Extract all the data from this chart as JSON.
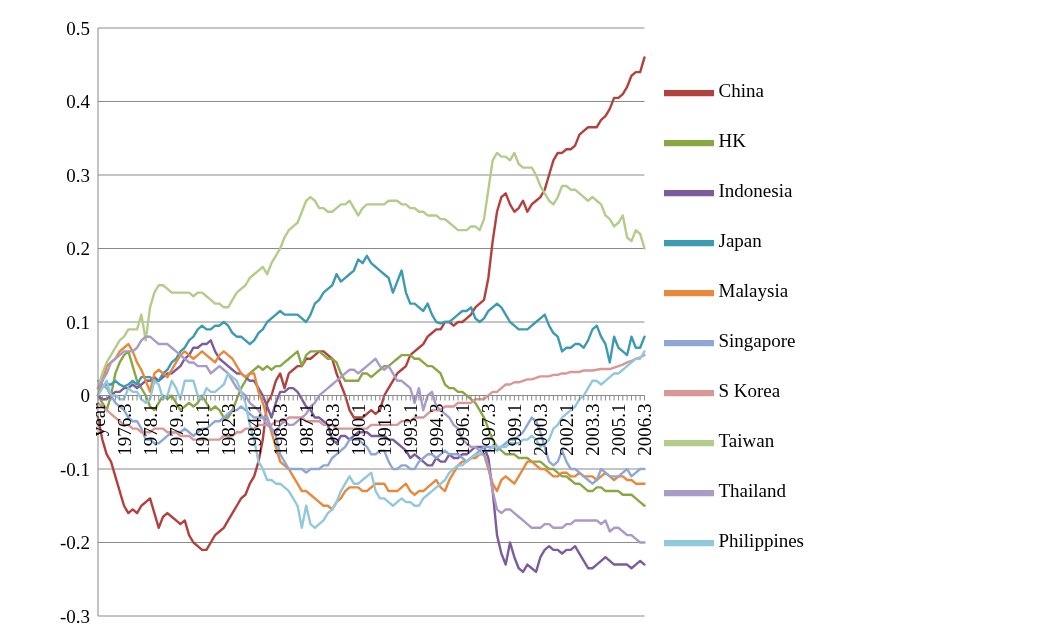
{
  "chart_data": {
    "type": "line",
    "categories": [
      "year",
      null,
      null,
      null,
      null,
      null,
      "1976.3",
      null,
      null,
      null,
      null,
      null,
      "1978.1",
      null,
      null,
      null,
      null,
      null,
      "1979.3",
      null,
      null,
      null,
      null,
      null,
      "1981.1",
      null,
      null,
      null,
      null,
      null,
      "1982.3",
      null,
      null,
      null,
      null,
      null,
      "1984.1",
      null,
      null,
      null,
      null,
      null,
      "1985.3",
      null,
      null,
      null,
      null,
      null,
      "1987.1",
      null,
      null,
      null,
      null,
      null,
      "1988.3",
      null,
      null,
      null,
      null,
      null,
      "1990.1",
      null,
      null,
      null,
      null,
      null,
      "1991.3",
      null,
      null,
      null,
      null,
      null,
      "1993.1",
      null,
      null,
      null,
      null,
      null,
      "1994.3",
      null,
      null,
      null,
      null,
      null,
      "1996.1",
      null,
      null,
      null,
      null,
      null,
      "1997.3",
      null,
      null,
      null,
      null,
      null,
      "1999.1",
      null,
      null,
      null,
      null,
      null,
      "2000.3",
      null,
      null,
      null,
      null,
      null,
      "2002.1",
      null,
      null,
      null,
      null,
      null,
      "2003.3",
      null,
      null,
      null,
      null,
      null,
      "2005.1",
      null,
      null,
      null,
      null,
      null,
      "2006.3"
    ],
    "ylim": [
      -0.3,
      0.5
    ],
    "yticks": [
      -0.3,
      -0.2,
      -0.1,
      0,
      0.1,
      0.2,
      0.3,
      0.4,
      0.5
    ],
    "grid": "y",
    "legend": "right",
    "series": [
      {
        "name": "China",
        "color": "#b2413e",
        "values": [
          -0.03,
          -0.06,
          -0.08,
          -0.09,
          -0.11,
          -0.13,
          -0.15,
          -0.16,
          -0.155,
          -0.16,
          -0.15,
          -0.145,
          -0.14,
          -0.16,
          -0.18,
          -0.165,
          -0.16,
          -0.165,
          -0.17,
          -0.175,
          -0.17,
          -0.19,
          -0.2,
          -0.205,
          -0.21,
          -0.21,
          -0.2,
          -0.19,
          -0.185,
          -0.18,
          -0.17,
          -0.16,
          -0.15,
          -0.14,
          -0.135,
          -0.12,
          -0.11,
          -0.09,
          -0.06,
          -0.01,
          0.0,
          0.02,
          0.03,
          0.01,
          0.03,
          0.035,
          0.04,
          0.04,
          0.05,
          0.05,
          0.055,
          0.06,
          0.06,
          0.055,
          0.05,
          0.03,
          0.015,
          0.0,
          -0.02,
          -0.03,
          -0.03,
          -0.03,
          -0.025,
          -0.02,
          -0.025,
          -0.02,
          0.0,
          0.01,
          0.02,
          0.03,
          0.035,
          0.04,
          0.055,
          0.06,
          0.065,
          0.07,
          0.08,
          0.085,
          0.09,
          0.09,
          0.1,
          0.1,
          0.095,
          0.1,
          0.1,
          0.105,
          0.11,
          0.12,
          0.125,
          0.13,
          0.16,
          0.21,
          0.25,
          0.27,
          0.275,
          0.26,
          0.25,
          0.255,
          0.265,
          0.25,
          0.26,
          0.265,
          0.27,
          0.28,
          0.3,
          0.32,
          0.33,
          0.33,
          0.335,
          0.335,
          0.34,
          0.355,
          0.36,
          0.365,
          0.365,
          0.365,
          0.375,
          0.38,
          0.39,
          0.405,
          0.405,
          0.41,
          0.42,
          0.435,
          0.44,
          0.44,
          0.46
        ]
      },
      {
        "name": "HK",
        "color": "#8aa745",
        "values": [
          0.0,
          -0.01,
          -0.02,
          0.0,
          0.03,
          0.045,
          0.055,
          0.06,
          0.04,
          0.02,
          0.01,
          0.0,
          -0.015,
          -0.02,
          -0.01,
          0.0,
          -0.005,
          0.0,
          -0.01,
          -0.02,
          -0.015,
          -0.01,
          -0.015,
          -0.01,
          0.0,
          -0.01,
          -0.02,
          -0.015,
          -0.02,
          -0.03,
          -0.03,
          -0.02,
          -0.005,
          0.01,
          0.02,
          0.03,
          0.035,
          0.04,
          0.035,
          0.04,
          0.035,
          0.04,
          0.04,
          0.045,
          0.05,
          0.055,
          0.06,
          0.04,
          0.055,
          0.06,
          0.06,
          0.06,
          0.055,
          0.05,
          0.05,
          0.045,
          0.03,
          0.02,
          0.02,
          0.02,
          0.02,
          0.03,
          0.03,
          0.025,
          0.03,
          0.035,
          0.04,
          0.04,
          0.045,
          0.05,
          0.055,
          0.055,
          0.055,
          0.05,
          0.05,
          0.045,
          0.04,
          0.04,
          0.035,
          0.03,
          0.015,
          0.01,
          0.01,
          0.005,
          0.005,
          0.0,
          -0.005,
          -0.01,
          -0.02,
          -0.03,
          -0.045,
          -0.06,
          -0.07,
          -0.075,
          -0.08,
          -0.08,
          -0.08,
          -0.085,
          -0.085,
          -0.085,
          -0.09,
          -0.09,
          -0.09,
          -0.095,
          -0.1,
          -0.1,
          -0.105,
          -0.11,
          -0.11,
          -0.115,
          -0.12,
          -0.12,
          -0.125,
          -0.13,
          -0.13,
          -0.125,
          -0.125,
          -0.13,
          -0.13,
          -0.13,
          -0.13,
          -0.135,
          -0.135,
          -0.135,
          -0.14,
          -0.145,
          -0.15
        ]
      },
      {
        "name": "Indonesia",
        "color": "#7b5c9c",
        "values": [
          0.0,
          -0.005,
          -0.005,
          0.0,
          0.005,
          0.005,
          0.01,
          0.01,
          0.015,
          0.01,
          0.015,
          0.02,
          0.02,
          0.025,
          0.02,
          0.025,
          0.03,
          0.03,
          0.035,
          0.04,
          0.05,
          0.055,
          0.065,
          0.065,
          0.07,
          0.07,
          0.075,
          0.06,
          0.05,
          0.045,
          0.04,
          0.035,
          0.03,
          0.03,
          0.025,
          0.02,
          0.02,
          0.01,
          0.0,
          -0.015,
          -0.03,
          -0.01,
          0.005,
          0.005,
          0.01,
          0.01,
          0.005,
          -0.005,
          -0.015,
          -0.02,
          -0.03,
          -0.03,
          -0.035,
          -0.04,
          -0.06,
          -0.065,
          -0.055,
          -0.055,
          -0.06,
          -0.055,
          -0.05,
          -0.05,
          -0.05,
          -0.055,
          -0.055,
          -0.055,
          -0.055,
          -0.06,
          -0.06,
          -0.065,
          -0.07,
          -0.075,
          -0.085,
          -0.08,
          -0.085,
          -0.09,
          -0.095,
          -0.095,
          -0.085,
          -0.09,
          -0.09,
          -0.08,
          -0.085,
          -0.085,
          -0.08,
          -0.08,
          -0.075,
          -0.07,
          -0.07,
          -0.07,
          -0.085,
          -0.13,
          -0.19,
          -0.215,
          -0.23,
          -0.2,
          -0.22,
          -0.235,
          -0.24,
          -0.23,
          -0.235,
          -0.24,
          -0.22,
          -0.21,
          -0.205,
          -0.21,
          -0.21,
          -0.215,
          -0.21,
          -0.21,
          -0.205,
          -0.215,
          -0.225,
          -0.235,
          -0.235,
          -0.23,
          -0.225,
          -0.22,
          -0.225,
          -0.23,
          -0.23,
          -0.23,
          -0.23,
          -0.235,
          -0.23,
          -0.225,
          -0.23
        ]
      },
      {
        "name": "Japan",
        "color": "#3c9bb0",
        "values": [
          0.01,
          0.012,
          0.015,
          0.015,
          0.02,
          0.015,
          0.012,
          0.015,
          0.02,
          0.015,
          0.025,
          0.025,
          0.025,
          0.02,
          0.02,
          0.03,
          0.035,
          0.045,
          0.05,
          0.06,
          0.065,
          0.075,
          0.08,
          0.09,
          0.095,
          0.09,
          0.09,
          0.095,
          0.095,
          0.1,
          0.095,
          0.085,
          0.08,
          0.08,
          0.075,
          0.07,
          0.075,
          0.085,
          0.09,
          0.1,
          0.105,
          0.11,
          0.115,
          0.11,
          0.11,
          0.11,
          0.11,
          0.105,
          0.1,
          0.11,
          0.125,
          0.13,
          0.14,
          0.145,
          0.15,
          0.165,
          0.155,
          0.16,
          0.165,
          0.17,
          0.185,
          0.18,
          0.19,
          0.18,
          0.175,
          0.17,
          0.165,
          0.16,
          0.14,
          0.155,
          0.17,
          0.14,
          0.125,
          0.125,
          0.12,
          0.115,
          0.125,
          0.11,
          0.1,
          0.098,
          0.1,
          0.1,
          0.105,
          0.11,
          0.115,
          0.115,
          0.12,
          0.105,
          0.1,
          0.105,
          0.115,
          0.12,
          0.125,
          0.12,
          0.11,
          0.1,
          0.095,
          0.09,
          0.09,
          0.09,
          0.095,
          0.1,
          0.105,
          0.11,
          0.095,
          0.085,
          0.08,
          0.06,
          0.065,
          0.065,
          0.07,
          0.07,
          0.065,
          0.075,
          0.09,
          0.095,
          0.08,
          0.07,
          0.045,
          0.08,
          0.065,
          0.06,
          0.055,
          0.08,
          0.065,
          0.065,
          0.08
        ]
      },
      {
        "name": "Malaysia",
        "color": "#e8883a",
        "values": [
          0.0,
          0.02,
          0.04,
          0.045,
          0.05,
          0.06,
          0.065,
          0.07,
          0.06,
          0.045,
          0.035,
          0.02,
          0.005,
          0.03,
          0.035,
          0.03,
          0.025,
          0.035,
          0.045,
          0.055,
          0.06,
          0.055,
          0.05,
          0.055,
          0.06,
          0.055,
          0.05,
          0.045,
          0.055,
          0.06,
          0.055,
          0.05,
          0.04,
          0.03,
          0.025,
          0.03,
          0.03,
          0.005,
          -0.01,
          -0.03,
          -0.05,
          -0.07,
          -0.09,
          -0.095,
          -0.1,
          -0.11,
          -0.12,
          -0.13,
          -0.13,
          -0.135,
          -0.14,
          -0.145,
          -0.15,
          -0.15,
          -0.155,
          -0.145,
          -0.14,
          -0.13,
          -0.125,
          -0.125,
          -0.125,
          -0.13,
          -0.13,
          -0.125,
          -0.12,
          -0.12,
          -0.12,
          -0.13,
          -0.13,
          -0.13,
          -0.125,
          -0.12,
          -0.13,
          -0.135,
          -0.13,
          -0.13,
          -0.125,
          -0.12,
          -0.115,
          -0.125,
          -0.13,
          -0.115,
          -0.105,
          -0.095,
          -0.09,
          -0.09,
          -0.085,
          -0.085,
          -0.08,
          -0.08,
          -0.1,
          -0.12,
          -0.13,
          -0.115,
          -0.11,
          -0.115,
          -0.12,
          -0.11,
          -0.1,
          -0.09,
          -0.09,
          -0.095,
          -0.1,
          -0.1,
          -0.105,
          -0.11,
          -0.11,
          -0.105,
          -0.105,
          -0.11,
          -0.11,
          -0.105,
          -0.11,
          -0.11,
          -0.11,
          -0.115,
          -0.11,
          -0.105,
          -0.11,
          -0.115,
          -0.11,
          -0.11,
          -0.115,
          -0.115,
          -0.12,
          -0.12,
          -0.12
        ]
      },
      {
        "name": "Singapore",
        "color": "#8ea7d6",
        "values": [
          0.02,
          0.015,
          0.01,
          0.0,
          -0.01,
          -0.015,
          -0.02,
          -0.03,
          -0.035,
          -0.035,
          -0.045,
          -0.06,
          -0.06,
          -0.065,
          -0.065,
          -0.06,
          -0.055,
          -0.05,
          -0.05,
          -0.05,
          -0.045,
          -0.05,
          -0.055,
          -0.05,
          -0.045,
          -0.045,
          -0.04,
          -0.035,
          -0.035,
          -0.03,
          -0.025,
          -0.02,
          -0.02,
          -0.015,
          -0.02,
          -0.025,
          -0.03,
          -0.03,
          -0.03,
          -0.03,
          -0.045,
          -0.055,
          -0.08,
          -0.09,
          -0.1,
          -0.1,
          -0.1,
          -0.1,
          -0.105,
          -0.1,
          -0.1,
          -0.1,
          -0.095,
          -0.095,
          -0.085,
          -0.08,
          -0.075,
          -0.07,
          -0.06,
          -0.06,
          -0.06,
          -0.065,
          -0.07,
          -0.08,
          -0.08,
          -0.075,
          -0.075,
          -0.09,
          -0.1,
          -0.1,
          -0.095,
          -0.095,
          -0.1,
          -0.1,
          -0.09,
          -0.085,
          -0.08,
          -0.08,
          -0.085,
          -0.08,
          -0.075,
          -0.08,
          -0.08,
          -0.08,
          -0.085,
          -0.09,
          -0.085,
          -0.08,
          -0.075,
          -0.07,
          -0.07,
          -0.07,
          -0.075,
          -0.07,
          -0.065,
          -0.06,
          -0.06,
          -0.055,
          -0.05,
          -0.04,
          -0.03,
          -0.035,
          -0.05,
          -0.07,
          -0.09,
          -0.095,
          -0.09,
          -0.075,
          -0.09,
          -0.1,
          -0.1,
          -0.105,
          -0.11,
          -0.115,
          -0.12,
          -0.115,
          -0.1,
          -0.105,
          -0.11,
          -0.11,
          -0.11,
          -0.105,
          -0.1,
          -0.11,
          -0.105,
          -0.1,
          -0.1
        ]
      },
      {
        "name": "S Korea",
        "color": "#d99795",
        "values": [
          -0.01,
          -0.015,
          -0.02,
          -0.025,
          -0.03,
          -0.035,
          -0.04,
          -0.04,
          -0.045,
          -0.045,
          -0.05,
          -0.05,
          -0.05,
          -0.045,
          -0.045,
          -0.045,
          -0.05,
          -0.05,
          -0.05,
          -0.055,
          -0.055,
          -0.055,
          -0.06,
          -0.06,
          -0.06,
          -0.06,
          -0.06,
          -0.06,
          -0.06,
          -0.055,
          -0.055,
          -0.055,
          -0.05,
          -0.05,
          -0.045,
          -0.045,
          -0.045,
          -0.04,
          -0.04,
          -0.04,
          -0.04,
          -0.035,
          -0.035,
          -0.035,
          -0.03,
          -0.03,
          -0.03,
          -0.03,
          -0.035,
          -0.035,
          -0.035,
          -0.035,
          -0.04,
          -0.04,
          -0.04,
          -0.045,
          -0.045,
          -0.045,
          -0.045,
          -0.045,
          -0.045,
          -0.045,
          -0.045,
          -0.04,
          -0.04,
          -0.04,
          -0.04,
          -0.04,
          -0.04,
          -0.04,
          -0.035,
          -0.035,
          -0.035,
          -0.03,
          -0.03,
          -0.03,
          -0.025,
          -0.02,
          -0.02,
          -0.02,
          -0.015,
          -0.015,
          -0.015,
          -0.01,
          -0.01,
          -0.01,
          -0.01,
          -0.005,
          -0.005,
          -0.005,
          0.0,
          0.005,
          0.005,
          0.01,
          0.015,
          0.015,
          0.018,
          0.018,
          0.02,
          0.022,
          0.022,
          0.024,
          0.026,
          0.026,
          0.026,
          0.028,
          0.028,
          0.03,
          0.03,
          0.032,
          0.032,
          0.032,
          0.034,
          0.034,
          0.034,
          0.035,
          0.036,
          0.036,
          0.036,
          0.038,
          0.04,
          0.042,
          0.045,
          0.047,
          0.05,
          0.052,
          0.055
        ]
      },
      {
        "name": "Taiwan",
        "color": "#b4cc8a",
        "values": [
          0.01,
          0.03,
          0.045,
          0.055,
          0.065,
          0.075,
          0.08,
          0.09,
          0.09,
          0.09,
          0.11,
          0.075,
          0.12,
          0.14,
          0.15,
          0.15,
          0.145,
          0.14,
          0.14,
          0.14,
          0.14,
          0.14,
          0.135,
          0.14,
          0.14,
          0.135,
          0.13,
          0.125,
          0.125,
          0.12,
          0.12,
          0.13,
          0.14,
          0.145,
          0.15,
          0.16,
          0.165,
          0.17,
          0.175,
          0.165,
          0.18,
          0.19,
          0.2,
          0.215,
          0.225,
          0.23,
          0.235,
          0.25,
          0.265,
          0.27,
          0.265,
          0.255,
          0.255,
          0.25,
          0.25,
          0.255,
          0.26,
          0.26,
          0.265,
          0.255,
          0.245,
          0.255,
          0.26,
          0.26,
          0.26,
          0.26,
          0.26,
          0.265,
          0.265,
          0.265,
          0.26,
          0.26,
          0.255,
          0.255,
          0.25,
          0.25,
          0.245,
          0.245,
          0.245,
          0.24,
          0.24,
          0.235,
          0.23,
          0.225,
          0.225,
          0.225,
          0.23,
          0.23,
          0.225,
          0.24,
          0.28,
          0.32,
          0.33,
          0.325,
          0.325,
          0.32,
          0.33,
          0.315,
          0.31,
          0.31,
          0.31,
          0.3,
          0.285,
          0.275,
          0.265,
          0.26,
          0.27,
          0.285,
          0.285,
          0.28,
          0.28,
          0.275,
          0.27,
          0.265,
          0.27,
          0.265,
          0.26,
          0.245,
          0.24,
          0.23,
          0.235,
          0.245,
          0.215,
          0.21,
          0.225,
          0.22,
          0.2
        ]
      },
      {
        "name": "Thailand",
        "color": "#aa9ac7",
        "values": [
          0.01,
          0.02,
          0.03,
          0.045,
          0.05,
          0.055,
          0.06,
          0.06,
          0.06,
          0.065,
          0.075,
          0.08,
          0.08,
          0.075,
          0.07,
          0.07,
          0.07,
          0.065,
          0.06,
          0.055,
          0.05,
          0.045,
          0.045,
          0.04,
          0.04,
          0.04,
          0.03,
          0.035,
          0.04,
          0.035,
          0.03,
          0.02,
          0.01,
          0.005,
          0.0,
          -0.01,
          -0.015,
          -0.02,
          -0.03,
          -0.04,
          -0.045,
          -0.05,
          -0.04,
          -0.035,
          -0.04,
          -0.04,
          -0.035,
          -0.03,
          -0.025,
          -0.015,
          -0.01,
          0.0,
          0.005,
          0.01,
          0.015,
          0.02,
          0.025,
          0.03,
          0.035,
          0.035,
          0.03,
          0.035,
          0.04,
          0.045,
          0.05,
          0.04,
          0.035,
          0.04,
          0.03,
          0.02,
          0.02,
          0.015,
          0.01,
          -0.01,
          0.01,
          -0.02,
          0.0,
          0.005,
          -0.015,
          -0.02,
          -0.025,
          -0.03,
          -0.04,
          -0.045,
          -0.06,
          -0.065,
          -0.07,
          -0.07,
          -0.075,
          -0.08,
          -0.095,
          -0.13,
          -0.155,
          -0.16,
          -0.155,
          -0.155,
          -0.16,
          -0.165,
          -0.17,
          -0.175,
          -0.18,
          -0.18,
          -0.18,
          -0.175,
          -0.175,
          -0.18,
          -0.18,
          -0.18,
          -0.175,
          -0.175,
          -0.17,
          -0.17,
          -0.17,
          -0.17,
          -0.17,
          -0.17,
          -0.175,
          -0.17,
          -0.185,
          -0.18,
          -0.18,
          -0.185,
          -0.19,
          -0.19,
          -0.195,
          -0.2,
          -0.2
        ]
      },
      {
        "name": "Philippines",
        "color": "#91c8dc",
        "values": [
          0.0,
          0.01,
          0.02,
          0.0,
          0.0,
          -0.005,
          -0.005,
          0.01,
          0.005,
          0.005,
          -0.005,
          -0.01,
          -0.005,
          0.02,
          0.015,
          -0.005,
          0.0,
          0.02,
          0.01,
          -0.005,
          0.02,
          0.02,
          0.02,
          0.0,
          -0.005,
          0.01,
          0.005,
          0.005,
          0.01,
          0.015,
          0.03,
          0.025,
          0.02,
          0.005,
          -0.01,
          -0.04,
          -0.06,
          -0.09,
          -0.1,
          -0.115,
          -0.115,
          -0.12,
          -0.12,
          -0.125,
          -0.13,
          -0.14,
          -0.15,
          -0.18,
          -0.15,
          -0.175,
          -0.18,
          -0.175,
          -0.17,
          -0.16,
          -0.155,
          -0.145,
          -0.13,
          -0.12,
          -0.11,
          -0.12,
          -0.12,
          -0.115,
          -0.11,
          -0.105,
          -0.13,
          -0.14,
          -0.14,
          -0.145,
          -0.15,
          -0.145,
          -0.14,
          -0.145,
          -0.145,
          -0.15,
          -0.15,
          -0.14,
          -0.135,
          -0.13,
          -0.125,
          -0.12,
          -0.115,
          -0.105,
          -0.1,
          -0.095,
          -0.095,
          -0.09,
          -0.085,
          -0.08,
          -0.08,
          -0.075,
          -0.075,
          -0.07,
          -0.07,
          -0.07,
          -0.07,
          -0.065,
          -0.065,
          -0.065,
          -0.06,
          -0.06,
          -0.055,
          -0.06,
          -0.07,
          -0.065,
          -0.06,
          -0.045,
          -0.04,
          -0.03,
          -0.025,
          -0.02,
          -0.015,
          -0.005,
          0.0,
          0.01,
          0.02,
          0.02,
          0.015,
          0.02,
          0.025,
          0.03,
          0.03,
          0.035,
          0.04,
          0.045,
          0.05,
          0.05,
          0.06
        ]
      }
    ]
  }
}
